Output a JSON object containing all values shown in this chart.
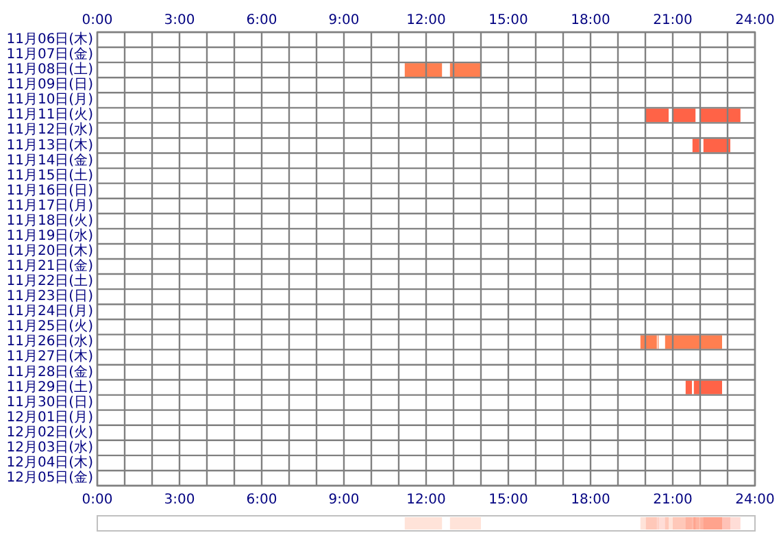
{
  "chart_data": {
    "type": "bar",
    "orientation": "horizontal",
    "categories": [
      "11月06日(木)",
      "11月07日(金)",
      "11月08日(土)",
      "11月09日(日)",
      "11月10日(月)",
      "11月11日(火)",
      "11月12日(水)",
      "11月13日(木)",
      "11月14日(金)",
      "11月15日(土)",
      "11月16日(日)",
      "11月17日(月)",
      "11月18日(火)",
      "11月19日(水)",
      "11月20日(木)",
      "11月21日(金)",
      "11月22日(土)",
      "11月23日(日)",
      "11月24日(月)",
      "11月25日(火)",
      "11月26日(水)",
      "11月27日(木)",
      "11月28日(金)",
      "11月29日(土)",
      "11月30日(日)",
      "12月01日(月)",
      "12月02日(火)",
      "12月03日(水)",
      "12月04日(木)",
      "12月05日(金)"
    ],
    "series": [
      {
        "values": [
          null,
          null,
          1.36,
          null,
          null,
          0.83,
          null,
          0.25,
          null,
          null,
          null,
          null,
          null,
          null,
          null,
          null,
          null,
          null,
          null,
          null,
          0.6,
          null,
          null,
          0.23,
          null,
          null,
          null,
          null,
          null,
          null
        ],
        "base": [
          null,
          null,
          11.22,
          null,
          null,
          20.02,
          null,
          21.72,
          null,
          null,
          null,
          null,
          null,
          null,
          null,
          null,
          null,
          null,
          null,
          null,
          19.82,
          null,
          null,
          21.47,
          null,
          null,
          null,
          null,
          null,
          null
        ],
        "colors": [
          null,
          null,
          "#ff7f50",
          null,
          null,
          "#ff6347",
          null,
          "#ff6347",
          null,
          null,
          null,
          null,
          null,
          null,
          null,
          null,
          null,
          null,
          null,
          null,
          "#ff7f50",
          null,
          null,
          "#ff6347",
          null,
          null,
          null,
          null,
          null,
          null
        ]
      },
      {
        "values": [
          null,
          null,
          1.13,
          null,
          null,
          0.83,
          null,
          0.98,
          null,
          null,
          null,
          null,
          null,
          null,
          null,
          null,
          null,
          null,
          null,
          null,
          0.03,
          null,
          null,
          1.03,
          null,
          null,
          null,
          null,
          null,
          null
        ],
        "base": [
          null,
          null,
          12.87,
          null,
          null,
          21.0,
          null,
          22.12,
          null,
          null,
          null,
          null,
          null,
          null,
          null,
          null,
          null,
          null,
          null,
          null,
          20.45,
          null,
          null,
          21.77,
          null,
          null,
          null,
          null,
          null,
          null
        ],
        "colors": [
          null,
          null,
          "#ff7f50",
          null,
          null,
          "#ff6347",
          null,
          "#ff6347",
          null,
          null,
          null,
          null,
          null,
          null,
          null,
          null,
          null,
          null,
          null,
          null,
          "#ff7f50",
          null,
          null,
          "#ff6347",
          null,
          null,
          null,
          null,
          null,
          null
        ]
      },
      {
        "values": [
          null,
          null,
          null,
          null,
          null,
          1.47,
          null,
          null,
          null,
          null,
          null,
          null,
          null,
          null,
          null,
          null,
          null,
          null,
          null,
          null,
          2.08,
          null,
          null,
          null,
          null,
          null,
          null,
          null,
          null,
          null
        ],
        "base": [
          null,
          null,
          null,
          null,
          null,
          22.0,
          null,
          null,
          null,
          null,
          null,
          null,
          null,
          null,
          null,
          null,
          null,
          null,
          null,
          null,
          20.72,
          null,
          null,
          null,
          null,
          null,
          null,
          null,
          null,
          null
        ],
        "colors": [
          null,
          null,
          null,
          null,
          null,
          "#ff6347",
          null,
          null,
          null,
          null,
          null,
          null,
          null,
          null,
          null,
          null,
          null,
          null,
          null,
          null,
          "#ff7f50",
          null,
          null,
          null,
          null,
          null,
          null,
          null,
          null,
          null
        ]
      }
    ],
    "xlim": [
      0,
      24
    ],
    "xticks": [
      {
        "value": 0,
        "label": "0:00"
      },
      {
        "value": 1,
        "label": null
      },
      {
        "value": 2,
        "label": null
      },
      {
        "value": 3,
        "label": "3:00"
      },
      {
        "value": 4,
        "label": null
      },
      {
        "value": 5,
        "label": null
      },
      {
        "value": 6,
        "label": "6:00"
      },
      {
        "value": 7,
        "label": null
      },
      {
        "value": 8,
        "label": null
      },
      {
        "value": 9,
        "label": "9:00"
      },
      {
        "value": 10,
        "label": null
      },
      {
        "value": 11,
        "label": null
      },
      {
        "value": 12,
        "label": "12:00"
      },
      {
        "value": 13,
        "label": null
      },
      {
        "value": 14,
        "label": null
      },
      {
        "value": 15,
        "label": "15:00"
      },
      {
        "value": 16,
        "label": null
      },
      {
        "value": 17,
        "label": null
      },
      {
        "value": 18,
        "label": "18:00"
      },
      {
        "value": 19,
        "label": null
      },
      {
        "value": 20,
        "label": null
      },
      {
        "value": 21,
        "label": "21:00"
      },
      {
        "value": 22,
        "label": null
      },
      {
        "value": 23,
        "label": null
      },
      {
        "value": 24,
        "label": "24:00"
      }
    ],
    "x2lim": [
      0,
      24
    ],
    "x2ticks": [
      {
        "value": 0,
        "label": "0:00"
      },
      {
        "value": 1,
        "label": null
      },
      {
        "value": 2,
        "label": null
      },
      {
        "value": 3,
        "label": "3:00"
      },
      {
        "value": 4,
        "label": null
      },
      {
        "value": 5,
        "label": null
      },
      {
        "value": 6,
        "label": "6:00"
      },
      {
        "value": 7,
        "label": null
      },
      {
        "value": 8,
        "label": null
      },
      {
        "value": 9,
        "label": "9:00"
      },
      {
        "value": 10,
        "label": null
      },
      {
        "value": 11,
        "label": null
      },
      {
        "value": 12,
        "label": "12:00"
      },
      {
        "value": 13,
        "label": null
      },
      {
        "value": 14,
        "label": null
      },
      {
        "value": 15,
        "label": "15:00"
      },
      {
        "value": 16,
        "label": null
      },
      {
        "value": 17,
        "label": null
      },
      {
        "value": 18,
        "label": "18:00"
      },
      {
        "value": 19,
        "label": null
      },
      {
        "value": 20,
        "label": null
      },
      {
        "value": 21,
        "label": "21:00"
      },
      {
        "value": 22,
        "label": null
      },
      {
        "value": 23,
        "label": null
      },
      {
        "value": 24,
        "label": "24:00"
      }
    ],
    "grid": true
  }
}
